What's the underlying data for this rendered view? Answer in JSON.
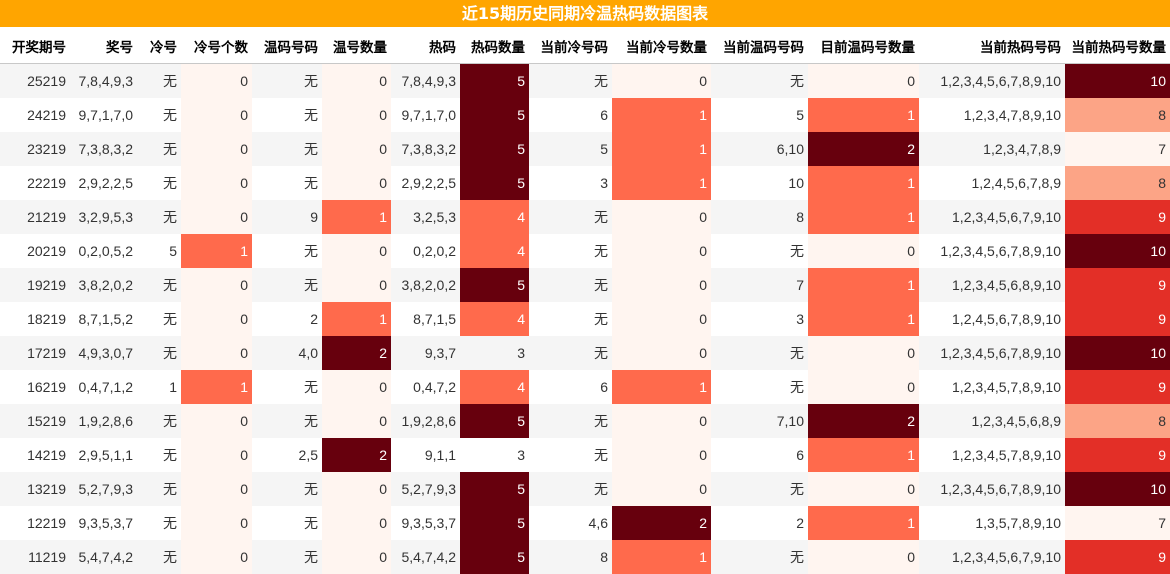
{
  "title": "近15期历史同期冷温热码数据图表",
  "columns": [
    "开奖期号",
    "奖号",
    "冷号",
    "冷号个数",
    "温码号码",
    "温号数量",
    "热码",
    "热码数量",
    "当前冷号码",
    "当前冷号数量",
    "当前温码号码",
    "目前温码号数量",
    "当前热码号码",
    "当前热码号数量"
  ],
  "rows": [
    [
      "25219",
      "7,8,4,9,3",
      "无",
      "0",
      "无",
      "0",
      "7,8,4,9,3",
      "5",
      "无",
      "0",
      "无",
      "0",
      "1,2,3,4,5,6,7,8,9,10",
      "10"
    ],
    [
      "24219",
      "9,7,1,7,0",
      "无",
      "0",
      "无",
      "0",
      "9,7,1,7,0",
      "5",
      "6",
      "1",
      "5",
      "1",
      "1,2,3,4,7,8,9,10",
      "8"
    ],
    [
      "23219",
      "7,3,8,3,2",
      "无",
      "0",
      "无",
      "0",
      "7,3,8,3,2",
      "5",
      "5",
      "1",
      "6,10",
      "2",
      "1,2,3,4,7,8,9",
      "7"
    ],
    [
      "22219",
      "2,9,2,2,5",
      "无",
      "0",
      "无",
      "0",
      "2,9,2,2,5",
      "5",
      "3",
      "1",
      "10",
      "1",
      "1,2,4,5,6,7,8,9",
      "8"
    ],
    [
      "21219",
      "3,2,9,5,3",
      "无",
      "0",
      "9",
      "1",
      "3,2,5,3",
      "4",
      "无",
      "0",
      "8",
      "1",
      "1,2,3,4,5,6,7,9,10",
      "9"
    ],
    [
      "20219",
      "0,2,0,5,2",
      "5",
      "1",
      "无",
      "0",
      "0,2,0,2",
      "4",
      "无",
      "0",
      "无",
      "0",
      "1,2,3,4,5,6,7,8,9,10",
      "10"
    ],
    [
      "19219",
      "3,8,2,0,2",
      "无",
      "0",
      "无",
      "0",
      "3,8,2,0,2",
      "5",
      "无",
      "0",
      "7",
      "1",
      "1,2,3,4,5,6,8,9,10",
      "9"
    ],
    [
      "18219",
      "8,7,1,5,2",
      "无",
      "0",
      "2",
      "1",
      "8,7,1,5",
      "4",
      "无",
      "0",
      "3",
      "1",
      "1,2,4,5,6,7,8,9,10",
      "9"
    ],
    [
      "17219",
      "4,9,3,0,7",
      "无",
      "0",
      "4,0",
      "2",
      "9,3,7",
      "3",
      "无",
      "0",
      "无",
      "0",
      "1,2,3,4,5,6,7,8,9,10",
      "10"
    ],
    [
      "16219",
      "0,4,7,1,2",
      "1",
      "1",
      "无",
      "0",
      "0,4,7,2",
      "4",
      "6",
      "1",
      "无",
      "0",
      "1,2,3,4,5,7,8,9,10",
      "9"
    ],
    [
      "15219",
      "1,9,2,8,6",
      "无",
      "0",
      "无",
      "0",
      "1,9,2,8,6",
      "5",
      "无",
      "0",
      "7,10",
      "2",
      "1,2,3,4,5,6,8,9",
      "8"
    ],
    [
      "14219",
      "2,9,5,1,1",
      "无",
      "0",
      "2,5",
      "2",
      "9,1,1",
      "3",
      "无",
      "0",
      "6",
      "1",
      "1,2,3,4,5,7,8,9,10",
      "9"
    ],
    [
      "13219",
      "5,2,7,9,3",
      "无",
      "0",
      "无",
      "0",
      "5,2,7,9,3",
      "5",
      "无",
      "0",
      "无",
      "0",
      "1,2,3,4,5,6,7,8,9,10",
      "10"
    ],
    [
      "12219",
      "9,3,5,3,7",
      "无",
      "0",
      "无",
      "0",
      "9,3,5,3,7",
      "5",
      "4,6",
      "2",
      "2",
      "1",
      "1,3,5,7,8,9,10",
      "7"
    ],
    [
      "11219",
      "5,4,7,4,2",
      "无",
      "0",
      "无",
      "0",
      "5,4,7,4,2",
      "5",
      "8",
      "1",
      "无",
      "0",
      "1,2,3,4,5,6,7,9,10",
      "9"
    ]
  ],
  "colors": {
    "title_bar": "#ffa500",
    "heat_low": "#fff5f0",
    "heat_mid": "#ff6a4c",
    "heat_high": "#67000d",
    "hot_8": "#fca486",
    "hot_9": "#e32f27"
  }
}
